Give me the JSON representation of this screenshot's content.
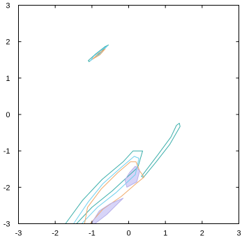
{
  "chart_data": {
    "type": "contour",
    "title": "",
    "xlabel": "",
    "ylabel": "",
    "xlim": [
      -3,
      3
    ],
    "ylim": [
      -3,
      3
    ],
    "x_ticks": [
      "-3",
      "-2",
      "-1",
      "0",
      "1",
      "2",
      "3"
    ],
    "y_ticks": [
      "3",
      "2",
      "1",
      "0",
      "-1",
      "-2",
      "-3"
    ],
    "grid": false,
    "legend": "none",
    "fill_color": "#c9c6f5",
    "levels": [
      {
        "color": "#3aaeaa",
        "contours": [
          [
            [
              -1.08,
              1.45
            ],
            [
              -0.85,
              1.62
            ],
            [
              -0.62,
              1.86
            ],
            [
              -0.55,
              1.91
            ],
            [
              -0.65,
              1.86
            ],
            [
              -0.9,
              1.66
            ],
            [
              -1.1,
              1.48
            ]
          ],
          [
            [
              -1.42,
              -3.0
            ],
            [
              -1.0,
              -2.55
            ],
            [
              -0.45,
              -2.1
            ],
            [
              0.25,
              -1.45
            ],
            [
              0.38,
              -1.0
            ],
            [
              0.12,
              -1.0
            ],
            [
              -0.15,
              -1.3
            ],
            [
              -0.72,
              -1.78
            ],
            [
              -1.25,
              -2.35
            ],
            [
              -1.72,
              -3.0
            ]
          ],
          [
            [
              0.35,
              -1.7
            ],
            [
              0.8,
              -1.1
            ],
            [
              1.15,
              -0.62
            ],
            [
              1.3,
              -0.3
            ],
            [
              1.38,
              -0.24
            ],
            [
              1.4,
              -0.33
            ],
            [
              1.12,
              -0.82
            ],
            [
              0.75,
              -1.3
            ],
            [
              0.4,
              -1.73
            ]
          ]
        ]
      },
      {
        "color": "#6fd0ee",
        "contours": [
          [
            [
              -1.04,
              1.48
            ],
            [
              -0.8,
              1.65
            ],
            [
              -0.58,
              1.88
            ],
            [
              -0.7,
              1.8
            ],
            [
              -0.95,
              1.6
            ]
          ],
          [
            [
              -1.28,
              -3.0
            ],
            [
              -0.85,
              -2.55
            ],
            [
              -0.35,
              -2.15
            ],
            [
              0.18,
              -1.65
            ],
            [
              0.28,
              -1.2
            ],
            [
              0.15,
              -1.15
            ],
            [
              -0.2,
              -1.45
            ],
            [
              -0.7,
              -1.9
            ],
            [
              -1.1,
              -2.4
            ],
            [
              -1.5,
              -3.0
            ]
          ]
        ]
      },
      {
        "color": "#f0a868",
        "contours": [
          [
            [
              -0.98,
              1.52
            ],
            [
              -0.78,
              1.64
            ],
            [
              -0.64,
              1.8
            ],
            [
              -0.82,
              1.68
            ]
          ],
          [
            [
              -1.05,
              -3.0
            ],
            [
              -0.7,
              -2.6
            ],
            [
              -0.2,
              -2.25
            ],
            [
              0.2,
              -1.9
            ],
            [
              0.42,
              -1.72
            ],
            [
              0.3,
              -1.55
            ],
            [
              0.2,
              -1.3
            ],
            [
              0.05,
              -1.3
            ],
            [
              -0.3,
              -1.6
            ],
            [
              -0.75,
              -2.05
            ],
            [
              -1.12,
              -2.55
            ],
            [
              -1.2,
              -3.0
            ]
          ]
        ]
      },
      {
        "color": "#b7b0ea",
        "contours": [
          [
            [
              -0.92,
              -3.0
            ],
            [
              -0.6,
              -2.75
            ],
            [
              -0.35,
              -2.5
            ],
            [
              -0.15,
              -2.3
            ],
            [
              -0.5,
              -2.45
            ],
            [
              -0.8,
              -2.65
            ],
            [
              -1.02,
              -3.0
            ]
          ],
          [
            [
              -0.05,
              -2.0
            ],
            [
              0.22,
              -1.85
            ],
            [
              0.3,
              -1.55
            ],
            [
              0.18,
              -1.42
            ],
            [
              0.02,
              -1.6
            ],
            [
              -0.1,
              -1.8
            ]
          ]
        ]
      }
    ]
  }
}
